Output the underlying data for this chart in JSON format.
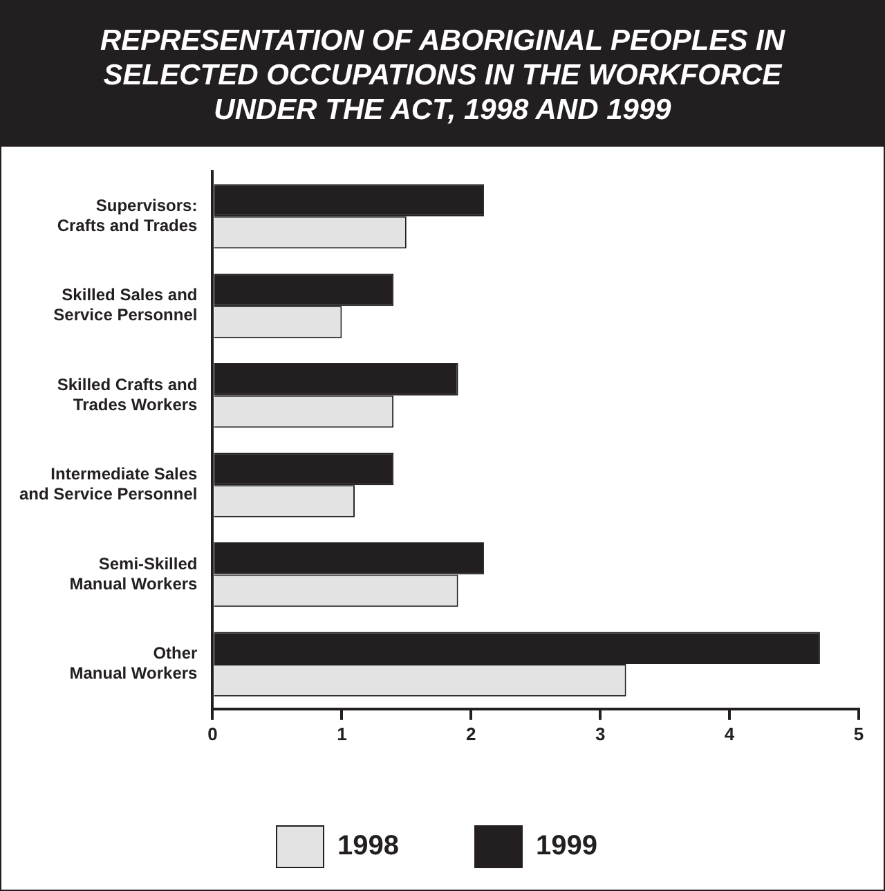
{
  "chart_data": {
    "type": "bar",
    "orientation": "horizontal",
    "title": "REPRESENTATION OF ABORIGINAL PEOPLES IN SELECTED OCCUPATIONS IN THE WORKFORCE UNDER THE ACT, 1998 AND 1999",
    "categories": [
      "Supervisors:\nCrafts and Trades",
      "Skilled Sales and\nService Personnel",
      "Skilled Crafts and\nTrades Workers",
      "Intermediate Sales\nand Service Personnel",
      "Semi-Skilled\nManual Workers",
      "Other\nManual Workers"
    ],
    "series": [
      {
        "name": "1999",
        "color": "#231f20",
        "values": [
          2.1,
          1.4,
          1.9,
          1.4,
          2.1,
          4.7
        ]
      },
      {
        "name": "1998",
        "color": "#e3e3e3",
        "values": [
          1.5,
          1.0,
          1.4,
          1.1,
          1.9,
          3.2
        ]
      }
    ],
    "xlim": [
      0,
      5
    ],
    "xticks": [
      0,
      1,
      2,
      3,
      4,
      5
    ],
    "grid": false,
    "legend": "bottom"
  }
}
